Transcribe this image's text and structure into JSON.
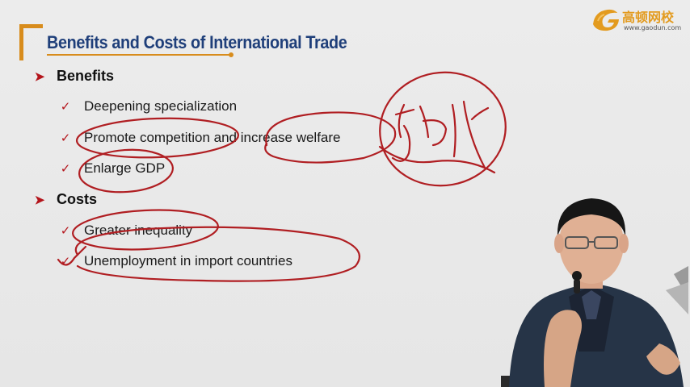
{
  "slide": {
    "title": "Benefits and Costs of International Trade",
    "accent_color": "#d88c1c",
    "title_color": "#1f3f7a",
    "marker_color": "#b4141b",
    "annotation_color": "#b01e22"
  },
  "logo": {
    "name": "高顿网校",
    "url": "www.gaodun.com",
    "icon": "gaodun-logo-icon"
  },
  "sections": {
    "benefits": {
      "heading": "Benefits",
      "icon": "arrow-right-icon",
      "items": [
        "Deepening specialization",
        "Promote competition and increase welfare",
        "Enlarge GDP"
      ]
    },
    "costs": {
      "heading": "Costs",
      "icon": "arrow-right-icon",
      "items": [
        "Greater inequality",
        "Unemployment in import countries"
      ]
    }
  },
  "item_icon": "check-icon",
  "handwritten_note": "福利"
}
